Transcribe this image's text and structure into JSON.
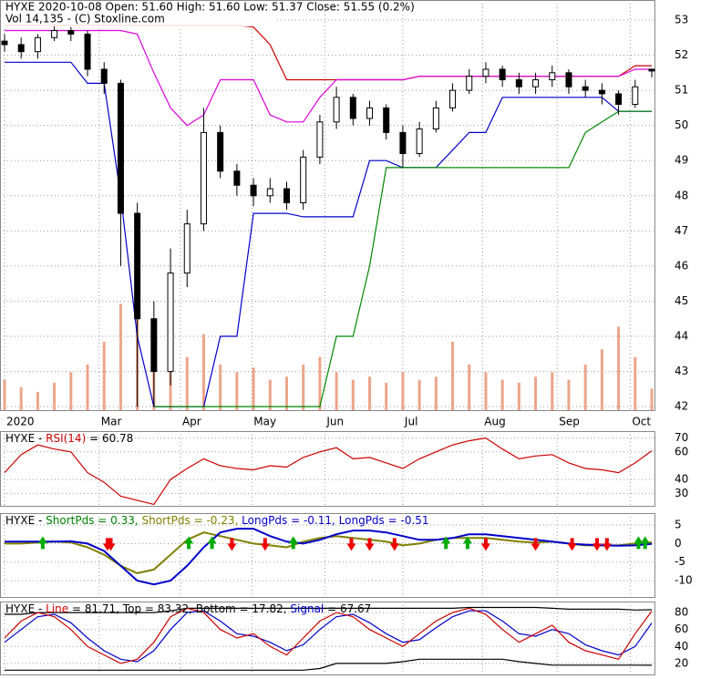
{
  "chart_data": [
    {
      "type": "candlestick",
      "title": "HYXE  2020-10-08 Open: 51.60  High: 51.60  Low: 51.37  Close: 51.55 (0.2%)",
      "subtitle": "Vol 14,135   - (C) Stoxline.com",
      "x": [
        0,
        1,
        2,
        3,
        4,
        5,
        6,
        7,
        8,
        9,
        10,
        11,
        12,
        13,
        14,
        15,
        16,
        17,
        18,
        19,
        20,
        21,
        22,
        23,
        24,
        25,
        26,
        27,
        28,
        29,
        30,
        31,
        32,
        33,
        34,
        35,
        36,
        37,
        38,
        39
      ],
      "xlim": [
        0,
        39
      ],
      "xticks": [
        {
          "value": 0,
          "label": "2020"
        },
        {
          "value": 5.7,
          "label": "Mar"
        },
        {
          "value": 10.6,
          "label": "Apr"
        },
        {
          "value": 14.9,
          "label": "May"
        },
        {
          "value": 19.3,
          "label": "Jun"
        },
        {
          "value": 24,
          "label": "Jul"
        },
        {
          "value": 28.8,
          "label": "Aug"
        },
        {
          "value": 33.3,
          "label": "Sep"
        },
        {
          "value": 37.7,
          "label": "Oct"
        }
      ],
      "ylim": [
        41.9,
        53.57
      ],
      "yticks": [
        53,
        52,
        51,
        50,
        49,
        48,
        47,
        46,
        45,
        44,
        43,
        42
      ],
      "grid": true,
      "open": [
        52.4,
        52.3,
        52.1,
        52.5,
        52.7,
        52.6,
        51.6,
        51.2,
        47.5,
        44.5,
        43.0,
        45.8,
        47.2,
        49.8,
        48.7,
        48.3,
        48.0,
        48.2,
        47.8,
        49.1,
        50.1,
        50.8,
        50.2,
        50.5,
        49.8,
        49.2,
        49.9,
        50.5,
        51.0,
        51.4,
        51.6,
        51.3,
        51.1,
        51.3,
        51.5,
        51.1,
        51.0,
        50.9,
        50.6,
        51.6
      ],
      "high": [
        52.6,
        52.5,
        52.6,
        52.9,
        52.8,
        52.7,
        51.8,
        51.3,
        47.8,
        45.0,
        46.5,
        47.6,
        50.5,
        50.0,
        48.9,
        48.5,
        48.5,
        48.4,
        49.3,
        50.3,
        51.1,
        50.9,
        50.7,
        50.6,
        50.0,
        50.1,
        50.7,
        51.2,
        51.6,
        51.8,
        51.7,
        51.5,
        51.5,
        51.7,
        51.6,
        51.3,
        51.2,
        51.0,
        51.3,
        51.6
      ],
      "low": [
        52.1,
        51.9,
        51.9,
        52.4,
        52.4,
        51.4,
        50.9,
        46.0,
        42.0,
        42.0,
        42.6,
        45.4,
        47.0,
        48.5,
        48.0,
        47.7,
        47.8,
        47.6,
        47.6,
        48.9,
        49.9,
        50.0,
        50.0,
        49.6,
        48.8,
        49.1,
        49.8,
        50.4,
        50.9,
        51.2,
        51.1,
        50.9,
        50.9,
        51.1,
        50.9,
        50.8,
        50.6,
        50.3,
        50.5,
        51.37
      ],
      "close": [
        52.3,
        52.1,
        52.5,
        52.7,
        52.6,
        51.6,
        51.2,
        47.5,
        44.5,
        43.0,
        45.8,
        47.2,
        49.8,
        48.7,
        48.3,
        48.0,
        48.2,
        47.8,
        49.1,
        50.1,
        50.8,
        50.2,
        50.5,
        49.8,
        49.2,
        49.9,
        50.5,
        51.0,
        51.4,
        51.6,
        51.3,
        51.1,
        51.3,
        51.5,
        51.1,
        51.0,
        50.9,
        50.6,
        51.1,
        51.55
      ],
      "volume": [
        20000,
        15000,
        12000,
        18000,
        25000,
        30000,
        45000,
        70000,
        90000,
        60000,
        40000,
        35000,
        50000,
        30000,
        25000,
        28000,
        20000,
        22000,
        30000,
        35000,
        25000,
        20000,
        22000,
        18000,
        25000,
        20000,
        22000,
        45000,
        30000,
        25000,
        20000,
        18000,
        22000,
        25000,
        20000,
        30000,
        40000,
        55000,
        35000,
        14135
      ],
      "volume_color": "#eba58a",
      "series": [
        {
          "color": "#cc0000",
          "values": [
            52.85,
            52.85,
            52.85,
            52.85,
            52.85,
            52.85,
            52.85,
            52.85,
            52.85,
            52.85,
            52.85,
            52.85,
            52.85,
            52.85,
            52.85,
            52.8,
            52.3,
            51.3,
            51.3,
            51.3,
            51.3,
            51.3,
            51.3,
            51.3,
            51.3,
            51.4,
            51.4,
            51.4,
            51.4,
            51.4,
            51.4,
            51.4,
            51.4,
            51.4,
            51.4,
            51.4,
            51.4,
            51.4,
            51.7,
            51.7
          ]
        },
        {
          "color": "#dd00dd",
          "values": [
            52.7,
            52.7,
            52.7,
            52.7,
            52.7,
            52.7,
            52.7,
            52.7,
            52.6,
            51.5,
            50.5,
            50.0,
            50.3,
            51.3,
            51.3,
            51.3,
            50.3,
            50.1,
            50.1,
            50.8,
            51.3,
            51.3,
            51.3,
            51.3,
            51.3,
            51.4,
            51.4,
            51.4,
            51.4,
            51.4,
            51.4,
            51.4,
            51.4,
            51.4,
            51.4,
            51.4,
            51.4,
            51.4,
            51.6,
            51.6
          ]
        },
        {
          "color": "#0000cc",
          "values": [
            51.8,
            51.8,
            51.8,
            51.8,
            51.8,
            51.2,
            51.2,
            48,
            44,
            42,
            42,
            42,
            42,
            44,
            44,
            47.5,
            47.5,
            47.5,
            47.4,
            47.4,
            47.4,
            47.4,
            49,
            49,
            48.8,
            48.8,
            48.8,
            49.3,
            49.8,
            49.8,
            50.8,
            50.8,
            50.8,
            50.8,
            50.8,
            50.8,
            50.8,
            50.4,
            50.4,
            50.4
          ]
        },
        {
          "color": "#008800",
          "values": [
            null,
            null,
            null,
            null,
            null,
            null,
            null,
            null,
            null,
            42,
            42,
            42,
            42,
            42,
            42,
            42,
            42,
            42,
            42,
            42,
            44,
            44,
            46,
            48.8,
            48.8,
            48.8,
            48.8,
            48.8,
            48.8,
            48.8,
            48.8,
            48.8,
            48.8,
            48.8,
            48.8,
            49.8,
            50.1,
            50.4,
            50.4,
            50.4
          ]
        }
      ]
    },
    {
      "type": "line",
      "title": [
        {
          "text": "HYXE - ",
          "color": "#000000"
        },
        {
          "text": "RSI(14)",
          "color": "#cc0000"
        },
        {
          "text": " = 60.78",
          "color": "#000000"
        }
      ],
      "ylim": [
        21,
        75
      ],
      "yticks": [
        70,
        60,
        40,
        30
      ],
      "grid": true,
      "series": [
        {
          "color": "#cc0000",
          "values": [
            45,
            58,
            65,
            62,
            60,
            45,
            38,
            28,
            25,
            22,
            40,
            48,
            55,
            50,
            48,
            47,
            50,
            49,
            56,
            60,
            63,
            55,
            56,
            52,
            48,
            55,
            60,
            65,
            68,
            70,
            62,
            55,
            57,
            58,
            52,
            48,
            47,
            45,
            52,
            60.78
          ]
        }
      ]
    },
    {
      "type": "line",
      "title": [
        {
          "text": "HYXE - ",
          "color": "#000000"
        },
        {
          "text": "ShortPds = 0.33, ",
          "color": "#008000"
        },
        {
          "text": "ShortPds = -0.23, ",
          "color": "#808000"
        },
        {
          "text": "LongPds = -0.11, ",
          "color": "#0000cc"
        },
        {
          "text": "LongPds = -0.51",
          "color": "#0000cc"
        }
      ],
      "ylim": [
        -14.4,
        8.2
      ],
      "yticks": [
        5,
        0,
        -5,
        -10
      ],
      "grid": true,
      "series": [
        {
          "color": "#808000",
          "values": [
            0,
            0,
            0.3,
            0.5,
            0.3,
            -1,
            -3,
            -6,
            -8,
            -7,
            -3,
            1,
            3,
            2,
            1,
            0,
            -0.5,
            -1,
            0.5,
            1.5,
            2,
            1.5,
            1,
            0.5,
            -0.5,
            0,
            1,
            1.5,
            1.5,
            1.5,
            1,
            0.5,
            0.3,
            0.5,
            0,
            -0.5,
            -0.5,
            -0.5,
            0,
            0.33
          ]
        },
        {
          "color": "#0000cc",
          "values": [
            0.5,
            0.5,
            0.5,
            0.5,
            0.6,
            0,
            -2,
            -6,
            -10,
            -11,
            -10,
            -6,
            -1,
            3,
            4,
            4,
            2,
            0.5,
            0,
            1,
            2.5,
            3.5,
            3.5,
            3,
            2,
            1,
            1,
            1.5,
            2.5,
            2.5,
            2,
            1.5,
            1,
            0.5,
            0,
            -0.3,
            -0.5,
            -0.6,
            -0.5,
            -0.11
          ]
        }
      ],
      "up_arrows": [
        2.3,
        11.1,
        12.5,
        17.4,
        26.6,
        27.9,
        38.2,
        38.6
      ],
      "up_color": "#00aa00",
      "down_arrows": [
        6.2,
        6.4,
        13.7,
        15.7,
        20.9,
        22.0,
        23.5,
        29.0,
        32.0,
        34.2,
        35.7,
        36.3
      ],
      "down_color": "#ee0000"
    },
    {
      "type": "line",
      "title": [
        {
          "text": "HYXE - ",
          "color": "#000000"
        },
        {
          "text": "Line",
          "color": "#cc0000"
        },
        {
          "text": " = 81.71, Top = 83.32, Bottom = 17.82, ",
          "color": "#000000"
        },
        {
          "text": "Signal",
          "color": "#0000cc"
        },
        {
          "text": " = 67.67",
          "color": "#000000"
        }
      ],
      "ylim": [
        7,
        93
      ],
      "yticks": [
        80,
        60,
        40,
        20
      ],
      "grid": true,
      "series": [
        {
          "color": "#000000",
          "values": [
            78,
            78,
            80,
            80,
            80,
            80,
            80,
            80,
            80,
            80,
            82,
            85,
            85,
            85,
            85,
            85,
            85,
            85,
            85,
            85,
            85,
            85,
            85,
            85,
            85,
            85,
            85,
            85,
            86,
            86,
            86,
            86,
            86,
            85,
            84,
            84,
            84,
            84,
            83,
            83.32
          ]
        },
        {
          "color": "#000000",
          "values": [
            12,
            12,
            12,
            12,
            12,
            12,
            12,
            12,
            12,
            12,
            12,
            12,
            12,
            12,
            12,
            12,
            12,
            12,
            12,
            14,
            20,
            20,
            20,
            20,
            22,
            25,
            25,
            25,
            25,
            25,
            25,
            22,
            20,
            18,
            18,
            18,
            18,
            18,
            18,
            17.82
          ]
        },
        {
          "color": "#0000cc",
          "values": [
            45,
            60,
            75,
            78,
            68,
            50,
            35,
            25,
            22,
            35,
            60,
            80,
            82,
            70,
            55,
            52,
            45,
            35,
            42,
            60,
            75,
            78,
            68,
            55,
            45,
            48,
            62,
            75,
            82,
            82,
            70,
            55,
            52,
            60,
            55,
            42,
            35,
            30,
            40,
            67.67
          ]
        },
        {
          "color": "#cc0000",
          "values": [
            50,
            70,
            80,
            75,
            60,
            40,
            30,
            20,
            25,
            45,
            75,
            85,
            80,
            60,
            50,
            55,
            40,
            30,
            50,
            70,
            80,
            75,
            60,
            50,
            40,
            55,
            70,
            80,
            85,
            78,
            60,
            45,
            55,
            65,
            45,
            35,
            30,
            25,
            55,
            81.71
          ]
        }
      ]
    }
  ]
}
